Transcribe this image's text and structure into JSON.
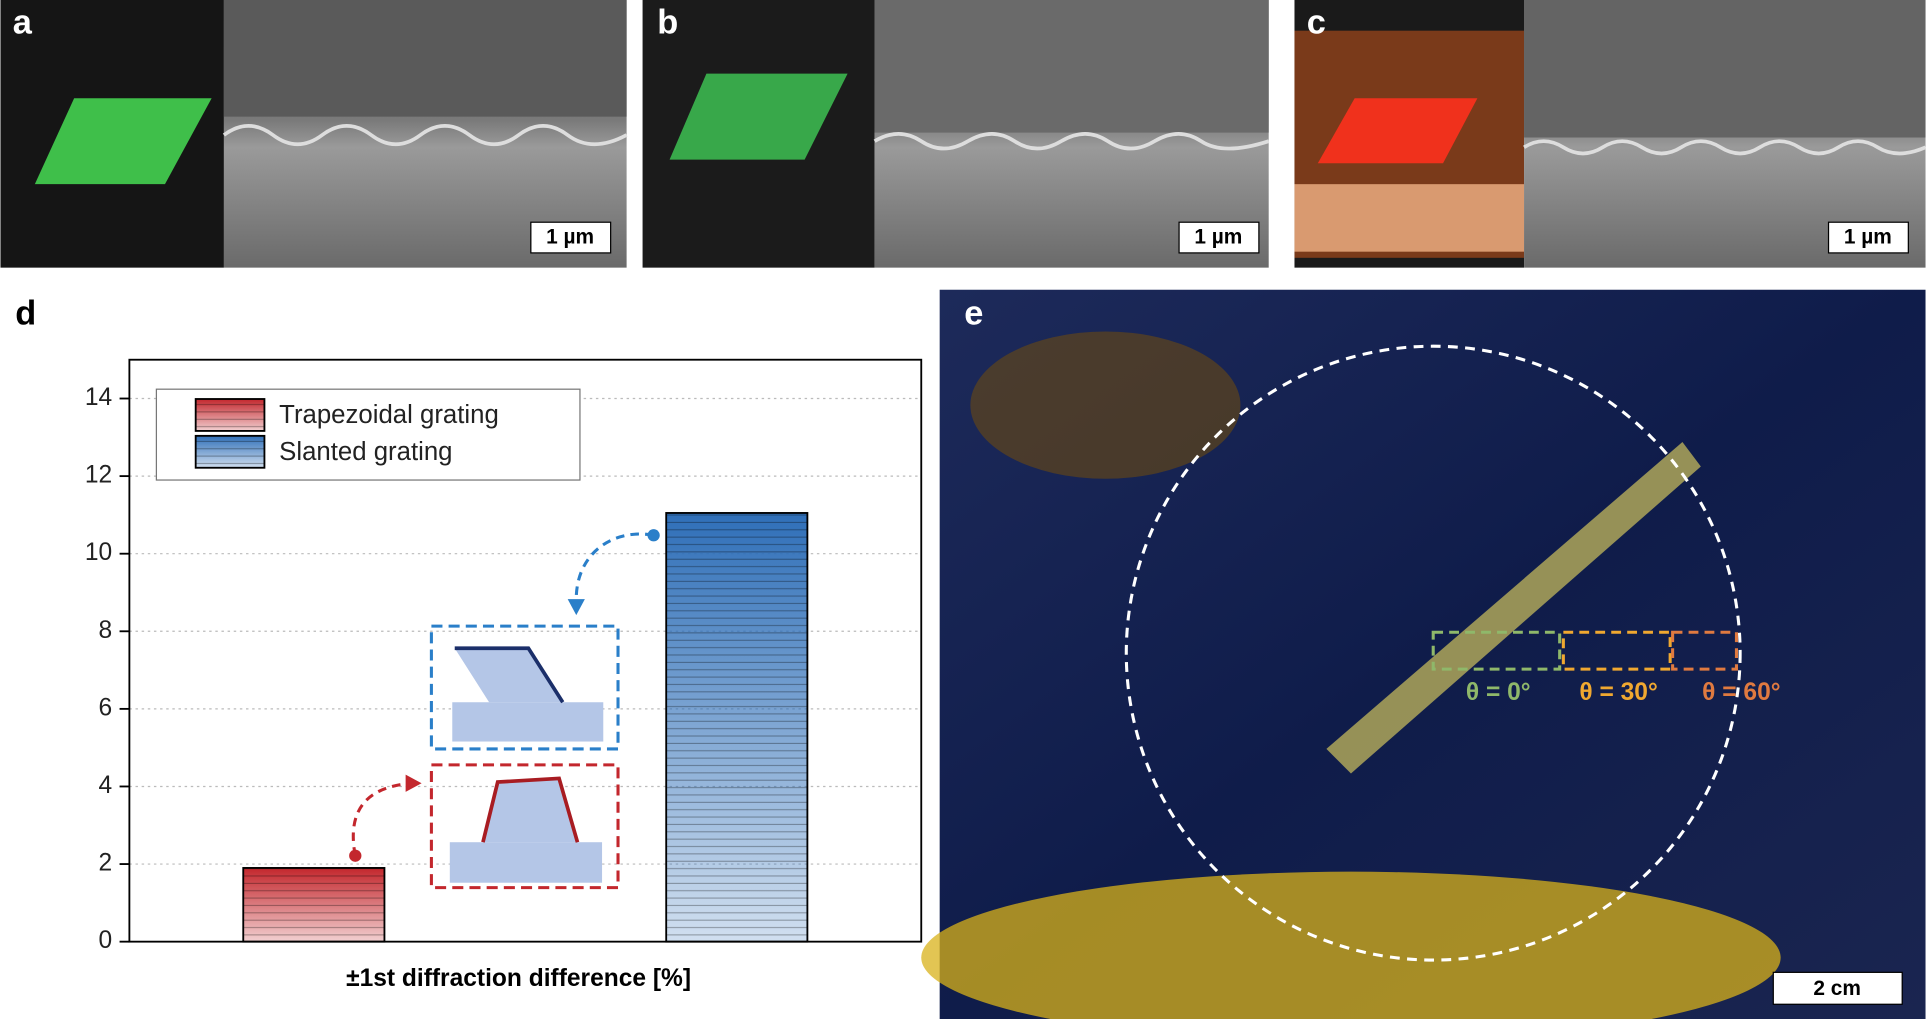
{
  "panels": {
    "a": {
      "label": "a",
      "scale_bar": "1 µm"
    },
    "b": {
      "label": "b",
      "scale_bar": "1 µm"
    },
    "c": {
      "label": "c",
      "scale_bar": "1 µm"
    },
    "d": {
      "label": "d"
    },
    "e": {
      "label": "e",
      "scale_bar": "2 cm",
      "angles": [
        "θ = 0°",
        "θ = 30°",
        "θ = 60°"
      ]
    }
  },
  "chart_data": {
    "type": "bar",
    "x_label": "±1st diffraction difference [%]",
    "categories": [
      null,
      null
    ],
    "series": [
      {
        "name": "Trapezoidal grating",
        "color": "#c3272d",
        "values": [
          1.9,
          null
        ]
      },
      {
        "name": "Slanted grating",
        "color": "#2f6fb8",
        "values": [
          null,
          11.05
        ]
      }
    ],
    "ylim": [
      0,
      15
    ],
    "yticks": [
      0,
      2,
      4,
      6,
      8,
      10,
      12,
      14
    ],
    "grid": true,
    "legend": "top-left"
  }
}
